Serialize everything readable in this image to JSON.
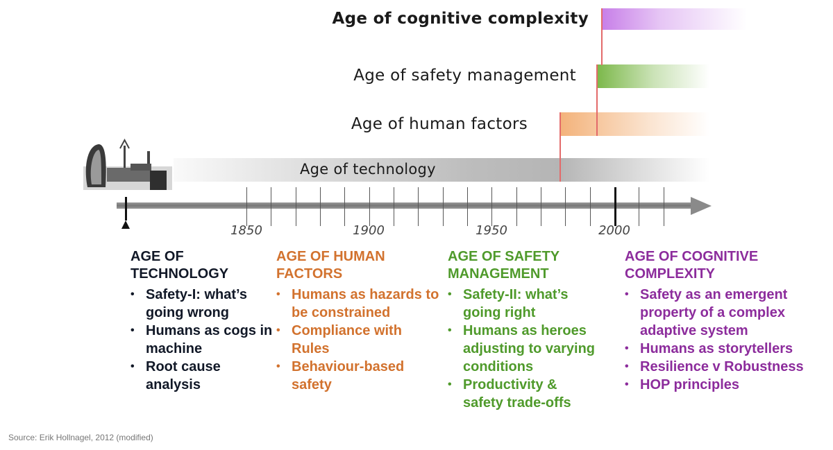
{
  "timeline": {
    "ages": [
      {
        "label": "Age of cognitive complexity",
        "color": "#c77ee8"
      },
      {
        "label": "Age of safety management",
        "color": "#7cb84a"
      },
      {
        "label": "Age of human factors",
        "color": "#f3b27a"
      },
      {
        "label": "Age of technology",
        "color": "#b9b9b9"
      }
    ],
    "axis_labels": [
      "1850",
      "1900",
      "1950",
      "2000"
    ],
    "divider_color": "#e36a6a"
  },
  "columns": [
    {
      "title": "AGE OF TECHNOLOGY",
      "color": "#111827",
      "items": [
        "Safety-I: what’s going wrong",
        "Humans as cogs in machine",
        "Root cause analysis"
      ]
    },
    {
      "title": "AGE OF HUMAN FACTORS",
      "color": "#d2722e",
      "items": [
        "Humans as hazards to be constrained",
        "Compliance with Rules",
        "Behaviour-based safety"
      ]
    },
    {
      "title": "AGE OF SAFETY MANAGEMENT",
      "color": "#4f9a2b",
      "items": [
        "Safety-II: what’s going right",
        "Humans as heroes adjusting to varying conditions",
        "Productivity & safety trade-offs"
      ]
    },
    {
      "title": "AGE OF COGNITIVE COMPLEXITY",
      "color": "#8c2c9c",
      "items": [
        "Safety as an emergent property of a complex adaptive system",
        "Humans as storytellers",
        "Resilience v Robustness",
        "HOP principles"
      ]
    }
  ],
  "source": "Source: Erik Hollnagel, 2012 (modified)"
}
